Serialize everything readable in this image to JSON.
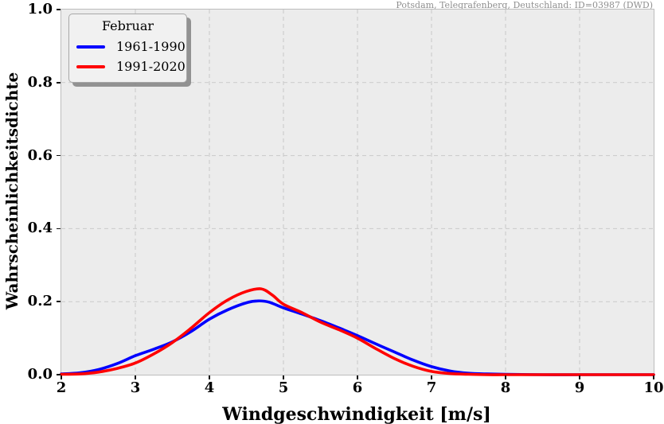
{
  "station_label": "Potsdam, Telegrafenberg, Deutschland: ID=03987 (DWD)",
  "legend": {
    "title": "Februar",
    "entries": [
      {
        "label": "1961-1990",
        "color": "#0000ff"
      },
      {
        "label": "1991-2020",
        "color": "#ff0000"
      }
    ]
  },
  "chart_data": {
    "type": "line",
    "title": "Potsdam, Telegrafenberg, Deutschland: ID=03987 (DWD)",
    "xlabel": "Windgeschwindigkeit [m/s]",
    "ylabel": "Wahrscheinlichkeitsdichte",
    "xlim": [
      2,
      10
    ],
    "ylim": [
      0.0,
      1.0
    ],
    "xticks": [
      2,
      3,
      4,
      5,
      6,
      7,
      8,
      9,
      10
    ],
    "yticks": [
      "0.0",
      "0.2",
      "0.4",
      "0.6",
      "0.8",
      "1.0"
    ],
    "ytick_values": [
      0.0,
      0.2,
      0.4,
      0.6,
      0.8,
      1.0
    ],
    "grid": "dashed",
    "legend_position": "upper-left",
    "legend_title": "Februar",
    "plot_background": "#ececec",
    "grid_color": "#c9c9c9",
    "series": [
      {
        "name": "1961-1990",
        "color": "#0000ff",
        "points": [
          [
            2.0,
            0.002
          ],
          [
            2.25,
            0.005
          ],
          [
            2.5,
            0.014
          ],
          [
            2.75,
            0.03
          ],
          [
            3.0,
            0.052
          ],
          [
            3.25,
            0.07
          ],
          [
            3.5,
            0.09
          ],
          [
            3.75,
            0.118
          ],
          [
            4.0,
            0.152
          ],
          [
            4.25,
            0.178
          ],
          [
            4.5,
            0.197
          ],
          [
            4.65,
            0.202
          ],
          [
            4.8,
            0.199
          ],
          [
            5.0,
            0.183
          ],
          [
            5.25,
            0.166
          ],
          [
            5.5,
            0.148
          ],
          [
            5.75,
            0.128
          ],
          [
            6.0,
            0.107
          ],
          [
            6.25,
            0.084
          ],
          [
            6.5,
            0.062
          ],
          [
            6.75,
            0.04
          ],
          [
            7.0,
            0.022
          ],
          [
            7.25,
            0.01
          ],
          [
            7.5,
            0.004
          ],
          [
            7.75,
            0.002
          ],
          [
            8.0,
            0.001
          ],
          [
            8.5,
            0.0
          ],
          [
            9.0,
            0.0
          ],
          [
            9.5,
            0.0
          ],
          [
            10.0,
            0.0
          ]
        ]
      },
      {
        "name": "1991-2020",
        "color": "#ff0000",
        "points": [
          [
            2.0,
            0.001
          ],
          [
            2.25,
            0.002
          ],
          [
            2.5,
            0.007
          ],
          [
            2.75,
            0.017
          ],
          [
            3.0,
            0.032
          ],
          [
            3.25,
            0.057
          ],
          [
            3.5,
            0.088
          ],
          [
            3.75,
            0.127
          ],
          [
            4.0,
            0.17
          ],
          [
            4.25,
            0.205
          ],
          [
            4.5,
            0.228
          ],
          [
            4.7,
            0.235
          ],
          [
            4.85,
            0.218
          ],
          [
            5.0,
            0.193
          ],
          [
            5.25,
            0.17
          ],
          [
            5.5,
            0.144
          ],
          [
            5.75,
            0.123
          ],
          [
            6.0,
            0.1
          ],
          [
            6.25,
            0.071
          ],
          [
            6.5,
            0.044
          ],
          [
            6.75,
            0.023
          ],
          [
            7.0,
            0.009
          ],
          [
            7.25,
            0.003
          ],
          [
            7.5,
            0.001
          ],
          [
            7.75,
            0.0
          ],
          [
            8.0,
            0.0
          ],
          [
            8.5,
            0.0
          ],
          [
            9.0,
            0.0
          ],
          [
            9.5,
            0.0
          ],
          [
            10.0,
            0.0
          ]
        ]
      }
    ]
  }
}
